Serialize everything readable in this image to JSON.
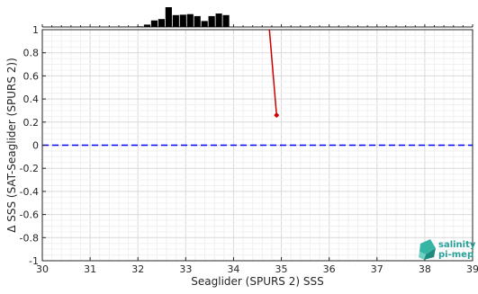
{
  "chart_data": {
    "type": "line",
    "xlabel": "Seaglider (SPURS 2) SSS",
    "ylabel": "Δ SSS (SAT-Seaglider (SPURS 2))",
    "xlim": [
      30,
      39
    ],
    "ylim": [
      -1,
      1
    ],
    "x_ticks": [
      "30",
      "31",
      "32",
      "33",
      "34",
      "35",
      "36",
      "37",
      "38",
      "39"
    ],
    "y_ticks": [
      "1",
      "0.8",
      "0.6",
      "0.4",
      "0.2",
      "0",
      "-0.2",
      "-0.4",
      "-0.6",
      "-0.8",
      "-1"
    ],
    "grid": true,
    "zero_line": {
      "y": 0,
      "color": "#0000ff",
      "style": "dashed"
    },
    "series": [
      {
        "color": "#cc0000",
        "x": [
          34.75,
          34.9
        ],
        "y": [
          1.0,
          0.26
        ],
        "marker": "diamond"
      }
    ],
    "histogram": {
      "color": "#000000",
      "bins": [
        31.7,
        31.9,
        32.05,
        32.2,
        32.35,
        32.5,
        32.65,
        32.8,
        32.95,
        33.1,
        33.25,
        33.4,
        33.55,
        33.7,
        33.85,
        34.0,
        34.15,
        34.3
      ],
      "heights": [
        0.02,
        0.02,
        0.03,
        0.12,
        0.33,
        0.4,
        1.0,
        0.6,
        0.62,
        0.65,
        0.55,
        0.3,
        0.55,
        0.68,
        0.6,
        0.0,
        0.0,
        0.0
      ]
    }
  },
  "logo": {
    "line1": "salinity",
    "line2": "pi-mep",
    "color": "#2aa198"
  }
}
